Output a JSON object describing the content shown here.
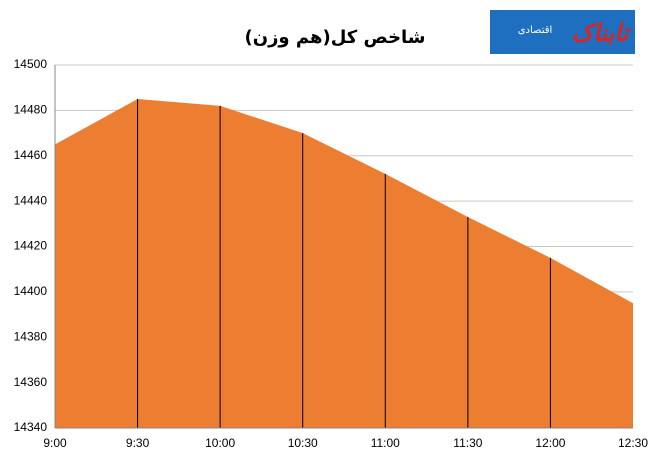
{
  "chart_data": {
    "type": "area",
    "title": "شاخص کل(هم وزن)",
    "logo": {
      "name": "تابناک",
      "sub": "اقتصادی"
    },
    "categories": [
      "9:00",
      "9:30",
      "10:00",
      "10:30",
      "11:00",
      "11:30",
      "12:00",
      "12:30"
    ],
    "values": [
      14465,
      14485,
      14482,
      14470,
      14452,
      14433,
      14415,
      14395
    ],
    "color": "#ed7d31",
    "ylim": [
      14340,
      14500
    ],
    "yticks": [
      14340,
      14360,
      14380,
      14400,
      14420,
      14440,
      14460,
      14480,
      14500
    ],
    "grid": true
  }
}
